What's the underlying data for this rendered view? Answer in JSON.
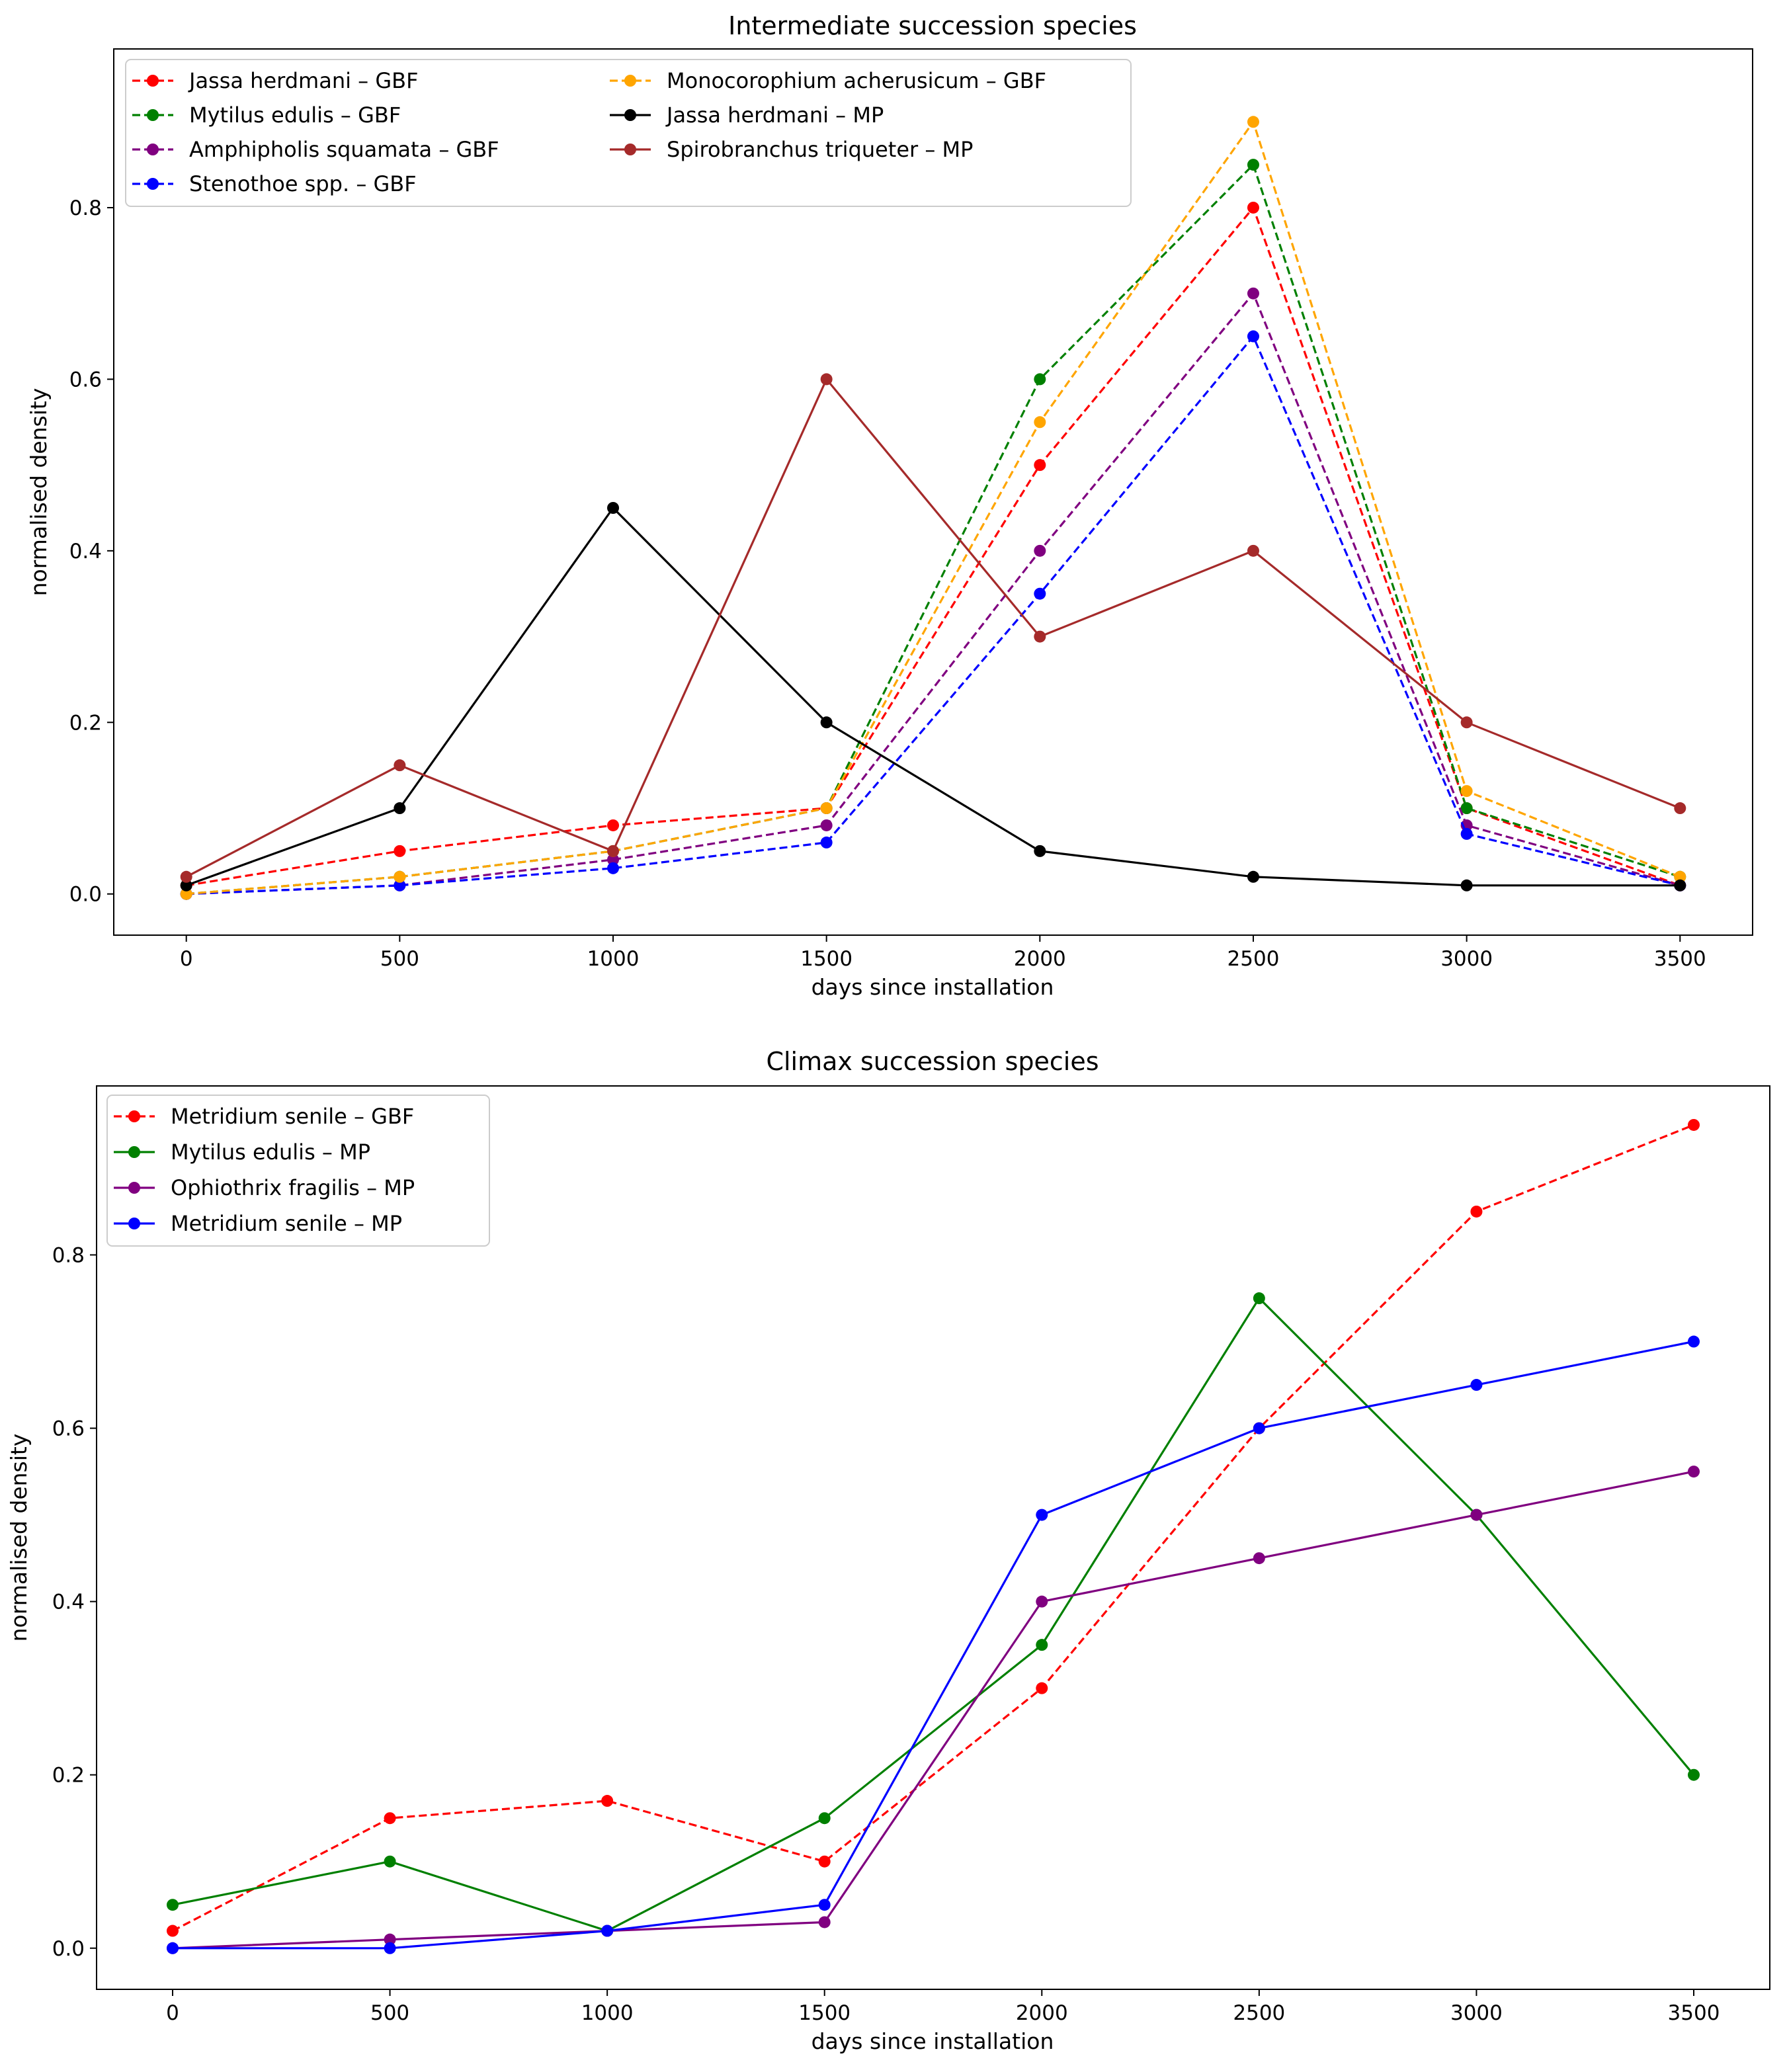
{
  "chart_data": [
    {
      "type": "line",
      "title": "Intermediate succession species",
      "xlabel": "days since installation",
      "ylabel": "normalised density",
      "xlim": [
        -170,
        3670
      ],
      "ylim": [
        -0.048,
        0.985
      ],
      "x_ticks": [
        0,
        500,
        1000,
        1500,
        2000,
        2500,
        3000,
        3500
      ],
      "y_ticks": [
        0.0,
        0.2,
        0.4,
        0.6,
        0.8
      ],
      "x_tick_labels": [
        "0",
        "500",
        "1000",
        "1500",
        "2000",
        "2500",
        "3000",
        "3500"
      ],
      "y_tick_labels": [
        "0.0",
        "0.2",
        "0.4",
        "0.6",
        "0.8"
      ],
      "grid": false,
      "legend_position": "top-left",
      "legend_columns": 2,
      "x": [
        0,
        500,
        1000,
        1500,
        2000,
        2500,
        3000,
        3500
      ],
      "series": [
        {
          "name": "Jassa herdmani – GBF",
          "color": "#ff0000",
          "style": "dashed",
          "values": [
            0.01,
            0.05,
            0.08,
            0.1,
            0.5,
            0.8,
            0.1,
            0.01
          ]
        },
        {
          "name": "Mytilus edulis – GBF",
          "color": "#008000",
          "style": "dashed",
          "values": [
            0.0,
            0.02,
            0.05,
            0.1,
            0.6,
            0.85,
            0.1,
            0.02
          ]
        },
        {
          "name": "Amphipholis squamata – GBF",
          "color": "#800080",
          "style": "dashed",
          "values": [
            0.0,
            0.01,
            0.04,
            0.08,
            0.4,
            0.7,
            0.08,
            0.01
          ]
        },
        {
          "name": "Stenothoe spp. – GBF",
          "color": "#0000ff",
          "style": "dashed",
          "values": [
            0.0,
            0.01,
            0.03,
            0.06,
            0.35,
            0.65,
            0.07,
            0.01
          ]
        },
        {
          "name": "Monocorophium acherusicum – GBF",
          "color": "#ffa500",
          "style": "dashed",
          "values": [
            0.0,
            0.02,
            0.05,
            0.1,
            0.55,
            0.9,
            0.12,
            0.02
          ]
        },
        {
          "name": "Jassa herdmani – MP",
          "color": "#000000",
          "style": "solid",
          "values": [
            0.01,
            0.1,
            0.45,
            0.2,
            0.05,
            0.02,
            0.01,
            0.01
          ]
        },
        {
          "name": "Spirobranchus triqueter – MP",
          "color": "#a52a2a",
          "style": "solid",
          "values": [
            0.02,
            0.15,
            0.05,
            0.6,
            0.3,
            0.4,
            0.2,
            0.1
          ]
        }
      ]
    },
    {
      "type": "line",
      "title": "Climax succession species",
      "xlabel": "days since installation",
      "ylabel": "normalised density",
      "xlim": [
        -175,
        3675
      ],
      "ylim": [
        -0.0475,
        0.995
      ],
      "x_ticks": [
        0,
        500,
        1000,
        1500,
        2000,
        2500,
        3000,
        3500
      ],
      "y_ticks": [
        0.0,
        0.2,
        0.4,
        0.6,
        0.8
      ],
      "x_tick_labels": [
        "0",
        "500",
        "1000",
        "1500",
        "2000",
        "2500",
        "3000",
        "3500"
      ],
      "y_tick_labels": [
        "0.0",
        "0.2",
        "0.4",
        "0.6",
        "0.8"
      ],
      "grid": false,
      "legend_position": "top-left",
      "legend_columns": 1,
      "x": [
        0,
        500,
        1000,
        1500,
        2000,
        2500,
        3000,
        3500
      ],
      "series": [
        {
          "name": "Metridium senile – GBF",
          "color": "#ff0000",
          "style": "dashed",
          "values": [
            0.02,
            0.15,
            0.17,
            0.1,
            0.3,
            0.6,
            0.85,
            0.95
          ]
        },
        {
          "name": "Mytilus edulis – MP",
          "color": "#008000",
          "style": "solid",
          "values": [
            0.05,
            0.1,
            0.02,
            0.15,
            0.35,
            0.75,
            0.5,
            0.2
          ]
        },
        {
          "name": "Ophiothrix fragilis – MP",
          "color": "#800080",
          "style": "solid",
          "values": [
            0.0,
            0.01,
            0.02,
            0.03,
            0.4,
            0.45,
            0.5,
            0.55
          ]
        },
        {
          "name": "Metridium senile – MP",
          "color": "#0000ff",
          "style": "solid",
          "values": [
            0.0,
            0.0,
            0.02,
            0.05,
            0.5,
            0.6,
            0.65,
            0.7
          ]
        }
      ]
    }
  ]
}
